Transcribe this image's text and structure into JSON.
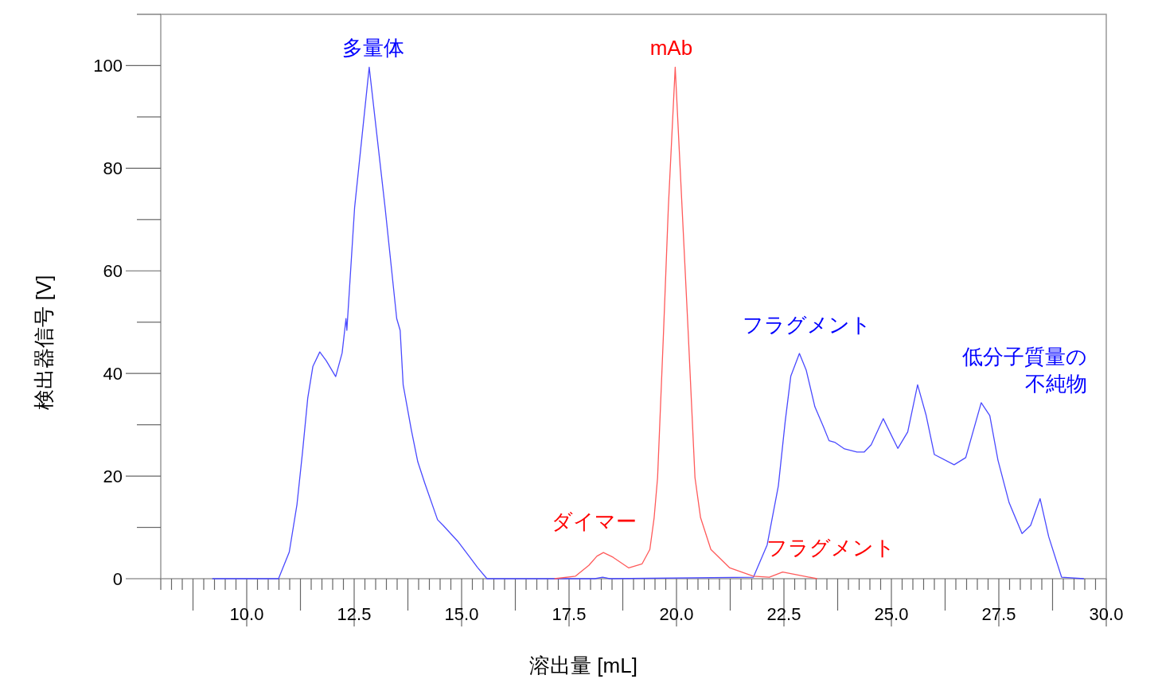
{
  "chart_data": {
    "type": "line",
    "xlabel": "溶出量 [mL]",
    "ylabel": "検出器信号 [V]",
    "xlim": [
      8,
      30
    ],
    "ylim": [
      0,
      110
    ],
    "xticks": [
      {
        "value": 10,
        "label": "10.0"
      },
      {
        "value": 12.5,
        "label": "12.5"
      },
      {
        "value": 15,
        "label": "15.0"
      },
      {
        "value": 17.5,
        "label": "17.5"
      },
      {
        "value": 20,
        "label": "20.0"
      },
      {
        "value": 22.5,
        "label": "22.5"
      },
      {
        "value": 25,
        "label": "25.0"
      },
      {
        "value": 27.5,
        "label": "27.5"
      },
      {
        "value": 30,
        "label": "30.0"
      }
    ],
    "yticks": [
      0,
      20,
      40,
      60,
      80,
      100
    ],
    "grid": false,
    "marker": "none",
    "line_style": "solid",
    "series": [
      {
        "color": "#4a4aff",
        "x": [
          9.2,
          10.74,
          10.99,
          11.17,
          11.3,
          11.42,
          11.54,
          11.7,
          11.85,
          12.07,
          12.22,
          12.31,
          12.33,
          12.51,
          12.85,
          13.22,
          13.49,
          13.57,
          13.64,
          13.83,
          13.98,
          14.14,
          14.44,
          14.57,
          14.91,
          15.19,
          15.37,
          15.59,
          18.1,
          18.28,
          18.45,
          21.79,
          22.11,
          22.37,
          22.53,
          22.66,
          22.86,
          23.02,
          23.22,
          23.42,
          23.55,
          23.68,
          23.91,
          24.2,
          24.37,
          24.53,
          24.81,
          25.15,
          25.38,
          25.61,
          25.81,
          26.0,
          26.46,
          26.73,
          27.09,
          27.29,
          27.48,
          27.74,
          28.04,
          28.24,
          28.46,
          28.66,
          28.96,
          29.48
        ],
        "values": [
          0,
          0,
          5.2,
          14.5,
          24.8,
          35.2,
          41.4,
          44.2,
          42.5,
          39.4,
          44.0,
          50.7,
          48.4,
          72.3,
          99.7,
          72.3,
          50.7,
          48.4,
          37.8,
          29.0,
          22.8,
          18.7,
          11.5,
          10.4,
          7.3,
          4.2,
          2.2,
          0,
          0,
          0.3,
          0,
          0.3,
          6.6,
          18.1,
          30.7,
          39.5,
          43.9,
          40.6,
          33.5,
          29.6,
          26.9,
          26.6,
          25.3,
          24.7,
          24.7,
          26.1,
          31.2,
          25.4,
          28.6,
          37.8,
          31.8,
          24.2,
          22.2,
          23.6,
          34.3,
          31.8,
          23.1,
          14.8,
          8.8,
          10.4,
          15.6,
          8.2,
          0.3,
          0
        ]
      },
      {
        "color": "#ff5a5a",
        "x": [
          17.16,
          17.65,
          17.96,
          18.15,
          18.3,
          18.52,
          18.89,
          19.2,
          19.38,
          19.48,
          19.56,
          19.7,
          19.81,
          19.97,
          20.13,
          20.27,
          20.43,
          20.56,
          20.8,
          21.24,
          21.79,
          22.16,
          22.47,
          22.78,
          23.27
        ],
        "values": [
          0,
          0.5,
          2.6,
          4.4,
          5.1,
          4.2,
          2.1,
          2.9,
          5.7,
          11.9,
          19.7,
          48.4,
          72.3,
          99.7,
          72.3,
          48.4,
          19.7,
          11.9,
          5.7,
          2.1,
          0.5,
          0.3,
          1.3,
          0.8,
          0
        ]
      }
    ],
    "annotations": [
      {
        "text": "多量体",
        "x": 12.85,
        "y": 99.7
      },
      {
        "text": "mAb",
        "x": 19.97,
        "y": 99.7
      },
      {
        "text": "ダイマー",
        "x": 18.3,
        "y": 5.1
      },
      {
        "text": "フラグメント",
        "x": 22.47,
        "y": 1.3
      },
      {
        "text": "フラグメント",
        "x": 22.86,
        "y": 43.9
      },
      {
        "text": "低分子質量の不純物",
        "x": 27.09,
        "y": 34.3
      }
    ]
  }
}
